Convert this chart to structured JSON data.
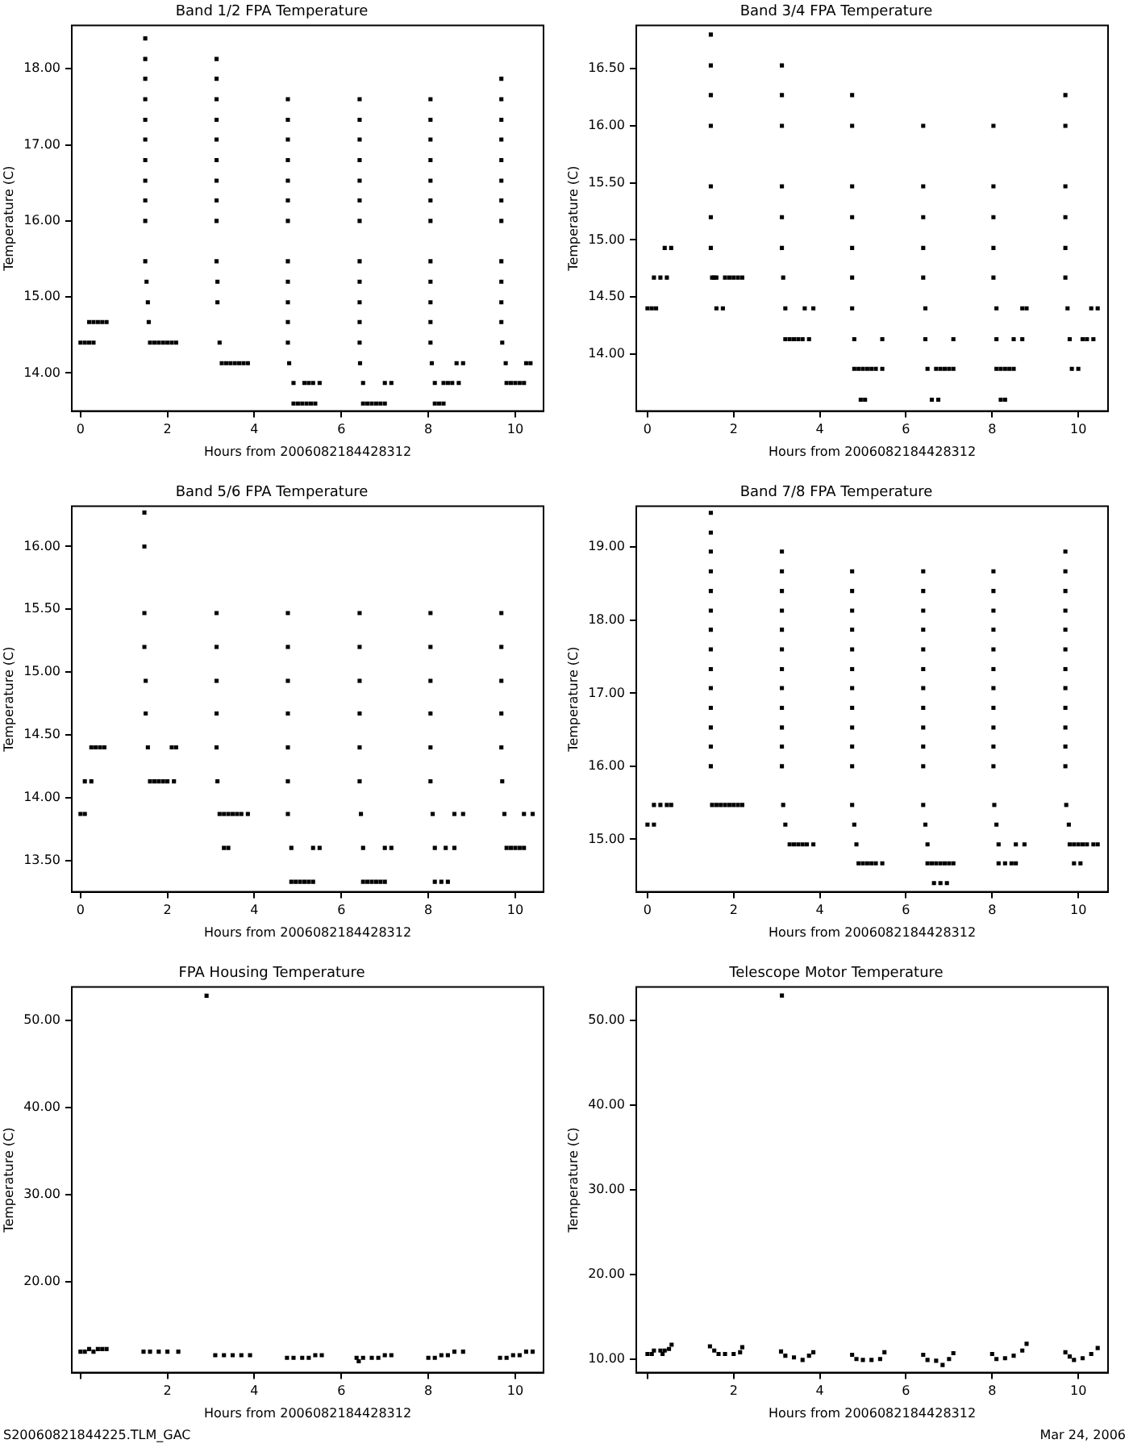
{
  "chart_data": [
    {
      "type": "scatter",
      "title": "Band 1/2 FPA Temperature",
      "xlabel": "Hours from 2006082184428312",
      "ylabel": "Temperature (C)",
      "marker": "square",
      "color": "#000000",
      "xlim": [
        -0.2,
        10.65
      ],
      "ylim": [
        13.5,
        18.57
      ],
      "xticks": [
        0,
        2,
        4,
        6,
        8,
        10
      ],
      "yticks": [
        {
          "value": 14,
          "label": "14.00"
        },
        {
          "value": 15,
          "label": "15.00"
        },
        {
          "value": 16,
          "label": "16.00"
        },
        {
          "value": 17,
          "label": "17.00"
        },
        {
          "value": 18,
          "label": "18.00"
        }
      ],
      "x": [
        0,
        0.1,
        0.2,
        0.3,
        0.2,
        0.3,
        0.4,
        0.5,
        0.6,
        1.49,
        1.49,
        1.49,
        1.49,
        1.49,
        1.49,
        1.49,
        1.49,
        1.49,
        1.49,
        1.49,
        1.52,
        1.55,
        1.57,
        1.6,
        1.7,
        1.8,
        1.9,
        2.0,
        2.1,
        2.2,
        3.13,
        3.13,
        3.13,
        3.13,
        3.13,
        3.13,
        3.13,
        3.13,
        3.13,
        3.13,
        3.15,
        3.15,
        3.2,
        3.25,
        3.35,
        3.45,
        3.55,
        3.65,
        3.75,
        3.85,
        4.77,
        4.77,
        4.77,
        4.77,
        4.77,
        4.77,
        4.77,
        4.77,
        4.77,
        4.77,
        4.77,
        4.77,
        4.8,
        4.9,
        4.9,
        5.0,
        5.1,
        5.2,
        5.3,
        5.4,
        5.15,
        5.25,
        5.35,
        5.5,
        6.42,
        6.42,
        6.42,
        6.42,
        6.42,
        6.42,
        6.42,
        6.42,
        6.42,
        6.42,
        6.42,
        6.42,
        6.43,
        6.5,
        6.5,
        6.6,
        6.7,
        6.8,
        6.9,
        7.0,
        7.0,
        7.15,
        8.05,
        8.05,
        8.05,
        8.05,
        8.05,
        8.05,
        8.05,
        8.05,
        8.05,
        8.05,
        8.05,
        8.05,
        8.08,
        8.15,
        8.15,
        8.25,
        8.35,
        8.35,
        8.45,
        8.55,
        8.7,
        8.65,
        8.8,
        9.68,
        9.68,
        9.68,
        9.68,
        9.68,
        9.68,
        9.68,
        9.68,
        9.68,
        9.68,
        9.68,
        9.68,
        9.7,
        9.78,
        9.8,
        9.9,
        10.0,
        10.1,
        10.2,
        10.25,
        10.35
      ],
      "values": [
        14.4,
        14.4,
        14.4,
        14.4,
        14.67,
        14.67,
        14.67,
        14.67,
        14.67,
        18.4,
        18.13,
        17.87,
        17.6,
        17.33,
        17.07,
        16.8,
        16.53,
        16.27,
        16.0,
        15.47,
        15.2,
        14.93,
        14.67,
        14.4,
        14.4,
        14.4,
        14.4,
        14.4,
        14.4,
        14.4,
        18.13,
        17.87,
        17.6,
        17.33,
        17.07,
        16.8,
        16.53,
        16.27,
        16.0,
        15.47,
        15.2,
        14.93,
        14.4,
        14.13,
        14.13,
        14.13,
        14.13,
        14.13,
        14.13,
        14.13,
        17.6,
        17.33,
        17.07,
        16.8,
        16.53,
        16.27,
        16.0,
        15.47,
        15.2,
        14.93,
        14.67,
        14.4,
        14.13,
        13.87,
        13.6,
        13.6,
        13.6,
        13.6,
        13.6,
        13.6,
        13.87,
        13.87,
        13.87,
        13.87,
        17.6,
        17.33,
        17.07,
        16.8,
        16.53,
        16.27,
        16.0,
        15.47,
        15.2,
        14.93,
        14.67,
        14.4,
        14.13,
        13.87,
        13.6,
        13.6,
        13.6,
        13.6,
        13.6,
        13.6,
        13.87,
        13.87,
        17.6,
        17.33,
        17.07,
        16.8,
        16.53,
        16.27,
        16.0,
        15.47,
        15.2,
        14.93,
        14.67,
        14.4,
        14.13,
        13.87,
        13.6,
        13.6,
        13.6,
        13.87,
        13.87,
        13.87,
        13.87,
        14.13,
        14.13,
        17.87,
        17.6,
        17.33,
        17.07,
        16.8,
        16.53,
        16.27,
        16.0,
        15.47,
        15.2,
        14.93,
        14.67,
        14.4,
        14.13,
        13.87,
        13.87,
        13.87,
        13.87,
        13.87,
        14.13,
        14.13
      ]
    },
    {
      "type": "scatter",
      "title": "Band 3/4 FPA Temperature",
      "xlabel": "Hours from 2006082184428312",
      "ylabel": "Temperature (C)",
      "marker": "square",
      "color": "#000000",
      "xlim": [
        -0.26,
        10.69
      ],
      "ylim": [
        13.5,
        16.88
      ],
      "xticks": [
        0,
        2,
        4,
        6,
        8,
        10
      ],
      "yticks": [
        {
          "value": 14,
          "label": "14.00"
        },
        {
          "value": 14.5,
          "label": "14.50"
        },
        {
          "value": 15,
          "label": "15.00"
        },
        {
          "value": 15.5,
          "label": "15.50"
        },
        {
          "value": 16,
          "label": "16.00"
        },
        {
          "value": 16.5,
          "label": "16.50"
        }
      ],
      "x": [
        0,
        0.1,
        0.2,
        0.15,
        0.3,
        0.45,
        0.4,
        0.55,
        1.47,
        1.47,
        1.47,
        1.47,
        1.47,
        1.47,
        1.47,
        1.55,
        1.5,
        1.6,
        1.8,
        1.9,
        2.0,
        2.1,
        2.2,
        1.6,
        1.75,
        3.12,
        3.12,
        3.12,
        3.12,
        3.12,
        3.12,
        3.15,
        3.2,
        3.2,
        3.3,
        3.4,
        3.5,
        3.6,
        3.75,
        3.65,
        3.85,
        4.75,
        4.75,
        4.75,
        4.75,
        4.75,
        4.75,
        4.75,
        4.8,
        4.8,
        4.9,
        5.0,
        5.1,
        5.2,
        5.3,
        5.45,
        4.95,
        5.05,
        5.45,
        6.4,
        6.4,
        6.4,
        6.4,
        6.4,
        6.45,
        6.45,
        6.5,
        6.7,
        6.8,
        6.9,
        7.0,
        7.1,
        7.1,
        6.6,
        6.75,
        8.03,
        8.03,
        8.03,
        8.03,
        8.03,
        8.1,
        8.1,
        8.1,
        8.2,
        8.3,
        8.4,
        8.5,
        8.2,
        8.3,
        8.5,
        8.7,
        8.7,
        8.8,
        9.7,
        9.7,
        9.7,
        9.7,
        9.7,
        9.7,
        9.75,
        9.8,
        9.85,
        10.0,
        10.1,
        10.2,
        10.35,
        10.3,
        10.45
      ],
      "values": [
        14.4,
        14.4,
        14.4,
        14.67,
        14.67,
        14.67,
        14.93,
        14.93,
        16.8,
        16.53,
        16.27,
        16.0,
        15.47,
        15.2,
        14.93,
        14.67,
        14.67,
        14.67,
        14.67,
        14.67,
        14.67,
        14.67,
        14.67,
        14.4,
        14.4,
        16.53,
        16.27,
        16.0,
        15.47,
        15.2,
        14.93,
        14.67,
        14.4,
        14.13,
        14.13,
        14.13,
        14.13,
        14.13,
        14.13,
        14.4,
        14.4,
        16.27,
        16.0,
        15.47,
        15.2,
        14.93,
        14.67,
        14.4,
        14.13,
        13.87,
        13.87,
        13.87,
        13.87,
        13.87,
        13.87,
        13.87,
        13.6,
        13.6,
        14.13,
        16.0,
        15.47,
        15.2,
        14.93,
        14.67,
        14.4,
        14.13,
        13.87,
        13.87,
        13.87,
        13.87,
        13.87,
        13.87,
        14.13,
        13.6,
        13.6,
        16.0,
        15.47,
        15.2,
        14.93,
        14.67,
        14.4,
        14.13,
        13.87,
        13.87,
        13.87,
        13.87,
        13.87,
        13.6,
        13.6,
        14.13,
        14.13,
        14.4,
        14.4,
        16.27,
        16.0,
        15.47,
        15.2,
        14.93,
        14.67,
        14.4,
        14.13,
        13.87,
        13.87,
        14.13,
        14.13,
        14.13,
        14.4,
        14.4
      ]
    },
    {
      "type": "scatter",
      "title": "Band 5/6 FPA Temperature",
      "xlabel": "Hours from 2006082184428312",
      "ylabel": "Temperature (C)",
      "marker": "square",
      "color": "#000000",
      "xlim": [
        -0.2,
        10.65
      ],
      "ylim": [
        13.25,
        16.32
      ],
      "xticks": [
        0,
        2,
        4,
        6,
        8,
        10
      ],
      "yticks": [
        {
          "value": 13.5,
          "label": "13.50"
        },
        {
          "value": 14,
          "label": "14.00"
        },
        {
          "value": 14.5,
          "label": "14.50"
        },
        {
          "value": 15,
          "label": "15.00"
        },
        {
          "value": 15.5,
          "label": "15.50"
        },
        {
          "value": 16,
          "label": "16.00"
        }
      ],
      "x": [
        0,
        0.1,
        0.1,
        0.25,
        0.25,
        0.35,
        0.45,
        0.55,
        1.47,
        1.47,
        1.47,
        1.47,
        1.5,
        1.5,
        1.55,
        1.6,
        1.7,
        1.8,
        1.9,
        2.0,
        2.15,
        2.1,
        2.2,
        3.13,
        3.13,
        3.13,
        3.13,
        3.13,
        3.15,
        3.2,
        3.3,
        3.4,
        3.5,
        3.6,
        3.7,
        3.85,
        3.3,
        3.4,
        4.77,
        4.77,
        4.77,
        4.77,
        4.77,
        4.77,
        4.77,
        4.85,
        4.85,
        4.95,
        5.05,
        5.15,
        5.25,
        5.35,
        5.35,
        5.5,
        6.42,
        6.42,
        6.42,
        6.42,
        6.42,
        6.42,
        6.45,
        6.5,
        6.5,
        6.6,
        6.7,
        6.8,
        6.9,
        7.0,
        7.0,
        7.15,
        8.05,
        8.05,
        8.05,
        8.05,
        8.05,
        8.05,
        8.1,
        8.15,
        8.15,
        8.3,
        8.45,
        8.4,
        8.6,
        8.6,
        8.8,
        9.68,
        9.68,
        9.68,
        9.68,
        9.68,
        9.7,
        9.75,
        9.8,
        9.9,
        10.0,
        10.1,
        10.2,
        10.2,
        10.4
      ],
      "values": [
        13.87,
        13.87,
        14.13,
        14.13,
        14.4,
        14.4,
        14.4,
        14.4,
        16.27,
        16.0,
        15.47,
        15.2,
        14.93,
        14.67,
        14.4,
        14.13,
        14.13,
        14.13,
        14.13,
        14.13,
        14.13,
        14.4,
        14.4,
        15.47,
        15.2,
        14.93,
        14.67,
        14.4,
        14.13,
        13.87,
        13.87,
        13.87,
        13.87,
        13.87,
        13.87,
        13.87,
        13.6,
        13.6,
        15.47,
        15.2,
        14.93,
        14.67,
        14.4,
        14.13,
        13.87,
        13.6,
        13.33,
        13.33,
        13.33,
        13.33,
        13.33,
        13.33,
        13.6,
        13.6,
        15.47,
        15.2,
        14.93,
        14.67,
        14.4,
        14.13,
        13.87,
        13.6,
        13.33,
        13.33,
        13.33,
        13.33,
        13.33,
        13.33,
        13.6,
        13.6,
        15.47,
        15.2,
        14.93,
        14.67,
        14.4,
        14.13,
        13.87,
        13.6,
        13.33,
        13.33,
        13.33,
        13.6,
        13.6,
        13.87,
        13.87,
        15.47,
        15.2,
        14.93,
        14.67,
        14.4,
        14.13,
        13.87,
        13.6,
        13.6,
        13.6,
        13.6,
        13.6,
        13.87,
        13.87
      ]
    },
    {
      "type": "scatter",
      "title": "Band 7/8 FPA Temperature",
      "xlabel": "Hours from 2006082184428312",
      "ylabel": "Temperature (C)",
      "marker": "square",
      "color": "#000000",
      "xlim": [
        -0.26,
        10.69
      ],
      "ylim": [
        14.28,
        19.56
      ],
      "xticks": [
        0,
        2,
        4,
        6,
        8,
        10
      ],
      "yticks": [
        {
          "value": 15,
          "label": "15.00"
        },
        {
          "value": 16,
          "label": "16.00"
        },
        {
          "value": 17,
          "label": "17.00"
        },
        {
          "value": 18,
          "label": "18.00"
        },
        {
          "value": 19,
          "label": "19.00"
        }
      ],
      "x": [
        0,
        0.15,
        0.15,
        0.3,
        0.45,
        0.55,
        1.47,
        1.47,
        1.47,
        1.47,
        1.47,
        1.47,
        1.47,
        1.47,
        1.47,
        1.47,
        1.47,
        1.47,
        1.47,
        1.47,
        1.5,
        1.6,
        1.7,
        1.8,
        1.9,
        2.0,
        2.1,
        2.2,
        3.12,
        3.12,
        3.12,
        3.12,
        3.12,
        3.12,
        3.12,
        3.12,
        3.12,
        3.12,
        3.12,
        3.12,
        3.15,
        3.2,
        3.3,
        3.4,
        3.5,
        3.6,
        3.7,
        3.85,
        4.75,
        4.75,
        4.75,
        4.75,
        4.75,
        4.75,
        4.75,
        4.75,
        4.75,
        4.75,
        4.75,
        4.75,
        4.8,
        4.85,
        4.9,
        5.0,
        5.1,
        5.2,
        5.3,
        5.45,
        6.4,
        6.4,
        6.4,
        6.4,
        6.4,
        6.4,
        6.4,
        6.4,
        6.4,
        6.4,
        6.4,
        6.4,
        6.45,
        6.5,
        6.5,
        6.6,
        6.7,
        6.8,
        6.9,
        7.0,
        7.1,
        6.65,
        6.8,
        6.95,
        8.03,
        8.03,
        8.03,
        8.03,
        8.03,
        8.03,
        8.03,
        8.03,
        8.03,
        8.03,
        8.03,
        8.05,
        8.1,
        8.15,
        8.15,
        8.3,
        8.45,
        8.55,
        8.55,
        8.75,
        9.7,
        9.7,
        9.7,
        9.7,
        9.7,
        9.7,
        9.7,
        9.7,
        9.7,
        9.7,
        9.7,
        9.7,
        9.72,
        9.78,
        9.8,
        9.9,
        10.0,
        10.1,
        10.2,
        10.35,
        10.45,
        9.9,
        10.05
      ],
      "values": [
        15.2,
        15.2,
        15.47,
        15.47,
        15.47,
        15.47,
        19.47,
        19.2,
        18.94,
        18.67,
        18.4,
        18.13,
        17.87,
        17.6,
        17.33,
        17.07,
        16.8,
        16.53,
        16.27,
        16.0,
        15.47,
        15.47,
        15.47,
        15.47,
        15.47,
        15.47,
        15.47,
        15.47,
        18.94,
        18.67,
        18.4,
        18.13,
        17.87,
        17.6,
        17.33,
        17.07,
        16.8,
        16.53,
        16.27,
        16.0,
        15.47,
        15.2,
        14.93,
        14.93,
        14.93,
        14.93,
        14.93,
        14.93,
        18.67,
        18.4,
        18.13,
        17.87,
        17.6,
        17.33,
        17.07,
        16.8,
        16.53,
        16.27,
        16.0,
        15.47,
        15.2,
        14.93,
        14.67,
        14.67,
        14.67,
        14.67,
        14.67,
        14.67,
        18.67,
        18.4,
        18.13,
        17.87,
        17.6,
        17.33,
        17.07,
        16.8,
        16.53,
        16.27,
        16.0,
        15.47,
        15.2,
        14.93,
        14.67,
        14.67,
        14.67,
        14.67,
        14.67,
        14.67,
        14.67,
        14.4,
        14.4,
        14.4,
        18.67,
        18.4,
        18.13,
        17.87,
        17.6,
        17.33,
        17.07,
        16.8,
        16.53,
        16.27,
        16.0,
        15.47,
        15.2,
        14.93,
        14.67,
        14.67,
        14.67,
        14.67,
        14.93,
        14.93,
        18.94,
        18.67,
        18.4,
        18.13,
        17.87,
        17.6,
        17.33,
        17.07,
        16.8,
        16.53,
        16.27,
        16.0,
        15.47,
        15.2,
        14.93,
        14.93,
        14.93,
        14.93,
        14.93,
        14.93,
        14.93,
        14.67,
        14.67
      ]
    },
    {
      "type": "scatter",
      "title": "FPA Housing Temperature",
      "xlabel": "Hours from 2006082184428312",
      "ylabel": "Temperature (C)",
      "marker": "square",
      "color": "#000000",
      "xlim": [
        -0.2,
        10.65
      ],
      "ylim": [
        9.6,
        53.8
      ],
      "xticks": [
        {
          "value": 0,
          "label": null
        },
        2,
        4,
        6,
        8,
        10
      ],
      "yticks": [
        {
          "value": 20,
          "label": "20.00"
        },
        {
          "value": 30,
          "label": "30.00"
        },
        {
          "value": 40,
          "label": "40.00"
        },
        {
          "value": 50,
          "label": "50.00"
        }
      ],
      "annotations": [
        "S20060821844225.TLM_GAC"
      ],
      "x": [
        0,
        0.1,
        0.2,
        0.3,
        0.4,
        0.5,
        0.6,
        1.45,
        1.6,
        1.8,
        2.0,
        2.25,
        2.9,
        3.1,
        3.3,
        3.5,
        3.7,
        3.9,
        4.75,
        4.9,
        5.1,
        5.25,
        5.4,
        5.55,
        6.35,
        6.4,
        6.5,
        6.7,
        6.85,
        7.0,
        7.15,
        8.0,
        8.15,
        8.3,
        8.45,
        8.6,
        8.8,
        9.65,
        9.8,
        9.95,
        10.1,
        10.25,
        10.4
      ],
      "values": [
        12.0,
        12.0,
        12.3,
        12.0,
        12.3,
        12.3,
        12.3,
        12.0,
        12.0,
        12.0,
        12.0,
        12.0,
        52.8,
        11.6,
        11.6,
        11.6,
        11.6,
        11.6,
        11.3,
        11.3,
        11.3,
        11.3,
        11.6,
        11.6,
        11.3,
        10.9,
        11.3,
        11.3,
        11.3,
        11.6,
        11.6,
        11.3,
        11.3,
        11.6,
        11.6,
        12.0,
        12.0,
        11.3,
        11.3,
        11.6,
        11.6,
        12.0,
        12.0
      ]
    },
    {
      "type": "scatter",
      "title": "Telescope Motor Temperature",
      "xlabel": "Hours from 2006082184428312",
      "ylabel": "Temperature (C)",
      "marker": "square",
      "color": "#000000",
      "xlim": [
        -0.26,
        10.69
      ],
      "ylim": [
        8.4,
        53.9
      ],
      "xticks": [
        {
          "value": 0,
          "label": null
        },
        2,
        4,
        6,
        8,
        10
      ],
      "yticks": [
        {
          "value": 10,
          "label": "10.00"
        },
        {
          "value": 20,
          "label": "20.00"
        },
        {
          "value": 30,
          "label": "30.00"
        },
        {
          "value": 40,
          "label": "40.00"
        },
        {
          "value": 50,
          "label": "50.00"
        }
      ],
      "annotations": [
        "Mar 24, 2006"
      ],
      "x": [
        0,
        0.1,
        0.15,
        0.3,
        0.35,
        0.4,
        0.5,
        0.56,
        1.45,
        1.55,
        1.65,
        1.8,
        2.0,
        2.15,
        2.2,
        3.12,
        3.1,
        3.2,
        3.4,
        3.6,
        3.75,
        3.85,
        4.75,
        4.85,
        5.0,
        5.2,
        5.4,
        5.5,
        6.4,
        6.5,
        6.7,
        6.85,
        7.0,
        7.1,
        8.0,
        8.1,
        8.3,
        8.5,
        8.7,
        8.8,
        9.7,
        9.8,
        9.9,
        10.1,
        10.3,
        10.45
      ],
      "values": [
        10.6,
        10.6,
        11.0,
        11.0,
        10.6,
        11.0,
        11.2,
        11.7,
        11.5,
        11.0,
        10.6,
        10.6,
        10.6,
        10.8,
        11.4,
        52.9,
        10.9,
        10.4,
        10.2,
        9.9,
        10.4,
        10.8,
        10.5,
        10.0,
        9.9,
        9.9,
        10.0,
        10.8,
        10.5,
        9.9,
        9.8,
        9.3,
        10.0,
        10.7,
        10.6,
        10.0,
        10.1,
        10.4,
        11.0,
        11.8,
        10.8,
        10.3,
        9.9,
        10.1,
        10.6,
        11.3
      ]
    }
  ]
}
